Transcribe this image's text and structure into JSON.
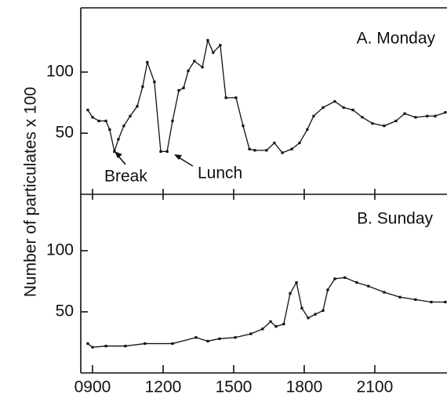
{
  "chart_data": [
    {
      "type": "line",
      "title": "A. Monday",
      "ylabel": "Number of particulates x 100",
      "annotations": [
        "Break",
        "Lunch"
      ],
      "x": [
        8.8,
        9.0,
        9.27,
        9.57,
        9.73,
        9.93,
        10.1,
        10.33,
        10.6,
        10.9,
        11.13,
        11.33,
        11.63,
        11.9,
        12.17,
        12.4,
        12.67,
        12.87,
        13.07,
        13.33,
        13.67,
        13.9,
        14.13,
        14.43,
        14.67,
        15.1,
        15.4,
        15.67,
        15.9,
        16.4,
        16.73,
        17.07,
        17.47,
        17.8,
        18.13,
        18.4,
        18.8,
        19.3,
        19.67,
        20.07,
        20.47,
        20.9,
        21.4,
        21.9,
        22.27,
        22.73,
        23.23,
        23.57,
        24.0
      ],
      "values": [
        69,
        63,
        60,
        60,
        53,
        35,
        45,
        56,
        64,
        72,
        88,
        108,
        92,
        35,
        35,
        60,
        85,
        87,
        101,
        109,
        104,
        126,
        116,
        122,
        79,
        79,
        56,
        37,
        36,
        36,
        42,
        34,
        37,
        42,
        53,
        64,
        71,
        76,
        71,
        69,
        63,
        58,
        56,
        60,
        66,
        63,
        64,
        64,
        67
      ],
      "color": "#111111",
      "ylim": [
        0,
        150
      ],
      "yticks": [
        50,
        100
      ]
    },
    {
      "type": "line",
      "title": "B. Sunday",
      "x": [
        8.8,
        9.0,
        9.57,
        10.4,
        11.23,
        12.4,
        13.4,
        13.9,
        14.4,
        15.07,
        15.73,
        16.23,
        16.57,
        16.8,
        17.13,
        17.4,
        17.67,
        17.9,
        18.17,
        18.47,
        18.8,
        19.0,
        19.3,
        19.73,
        20.23,
        20.73,
        21.4,
        22.07,
        22.73,
        23.4,
        24.0
      ],
      "values": [
        24,
        21,
        22,
        22,
        24,
        24,
        29,
        26,
        28,
        29,
        32,
        36,
        42,
        38,
        40,
        65,
        74,
        53,
        45,
        48,
        51,
        68,
        77,
        78,
        74,
        71,
        66,
        62,
        60,
        58,
        58
      ],
      "color": "#111111",
      "ylim": [
        0,
        150
      ],
      "yticks": [
        50,
        100
      ],
      "xlim": [
        8.5,
        24.07
      ],
      "xticks": [
        {
          "value": 9,
          "label": "0900"
        },
        {
          "value": 12,
          "label": "1200"
        },
        {
          "value": 15,
          "label": "1500"
        },
        {
          "value": 18,
          "label": "1800"
        },
        {
          "value": 21,
          "label": "2100"
        }
      ]
    }
  ]
}
